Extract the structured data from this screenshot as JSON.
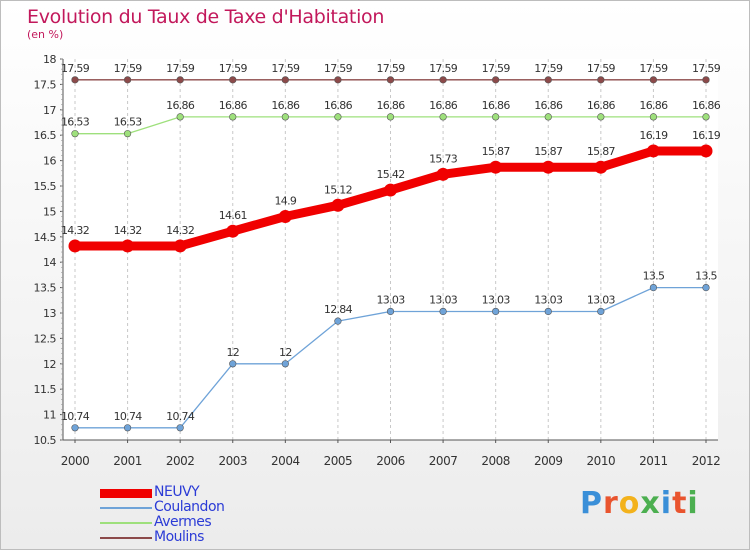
{
  "title": "Evolution du Taux de Taxe d'Habitation",
  "unit": "(en %)",
  "logo": {
    "text": "Proxiti",
    "colors": [
      "#3a8fd8",
      "#e9542e",
      "#f3b21c",
      "#4caf50",
      "#3a8fd8",
      "#e9542e",
      "#4caf50"
    ]
  },
  "chart_data": {
    "type": "line",
    "title": "Evolution du Taux de Taxe d'Habitation",
    "ylabel": "(en %)",
    "xlabel": "",
    "x": [
      "2000",
      "2001",
      "2002",
      "2003",
      "2004",
      "2005",
      "2006",
      "2007",
      "2008",
      "2009",
      "2010",
      "2011",
      "2012"
    ],
    "ylim": [
      10.5,
      18
    ],
    "yticks": [
      10.5,
      11,
      11.5,
      12,
      12.5,
      13,
      13.5,
      14,
      14.5,
      15,
      15.5,
      16,
      16.5,
      17,
      17.5,
      18
    ],
    "ytick_labels": [
      "10.5",
      "11",
      "11.5",
      "12",
      "12.5",
      "13",
      "13.5",
      "14",
      "14.5",
      "15",
      "15.5",
      "16",
      "16.5",
      "17",
      "17.5",
      "18"
    ],
    "grid": "vertical dashed",
    "legend_position": "bottom-left",
    "series": [
      {
        "name": "NEUVY",
        "color": "#f00000",
        "values": [
          14.32,
          14.32,
          14.32,
          14.61,
          14.9,
          15.12,
          15.42,
          15.73,
          15.87,
          15.87,
          15.87,
          16.19,
          16.19
        ],
        "labels": [
          "14.32",
          "14.32",
          "14.32",
          "14.61",
          "14.9",
          "15.12",
          "15.42",
          "15.73",
          "15.87",
          "15.87",
          "15.87",
          "16.19",
          "16.19"
        ]
      },
      {
        "name": "Coulandon",
        "color": "#6fa3d8",
        "values": [
          10.74,
          10.74,
          10.74,
          12,
          12,
          12.84,
          13.03,
          13.03,
          13.03,
          13.03,
          13.03,
          13.5,
          13.5
        ],
        "labels": [
          "10.74",
          "10.74",
          "10.74",
          "12",
          "12",
          "12.84",
          "13.03",
          "13.03",
          "13.03",
          "13.03",
          "13.03",
          "13.5",
          "13.5"
        ]
      },
      {
        "name": "Avermes",
        "color": "#9ee07c",
        "values": [
          16.53,
          16.53,
          16.86,
          16.86,
          16.86,
          16.86,
          16.86,
          16.86,
          16.86,
          16.86,
          16.86,
          16.86,
          16.86
        ],
        "labels": [
          "16.53",
          "16.53",
          "16.86",
          "16.86",
          "16.86",
          "16.86",
          "16.86",
          "16.86",
          "16.86",
          "16.86",
          "16.86",
          "16.86",
          "16.86"
        ]
      },
      {
        "name": "Moulins",
        "color": "#8c4a4a",
        "values": [
          17.59,
          17.59,
          17.59,
          17.59,
          17.59,
          17.59,
          17.59,
          17.59,
          17.59,
          17.59,
          17.59,
          17.59,
          17.59
        ],
        "labels": [
          "17.59",
          "17.59",
          "17.59",
          "17.59",
          "17.59",
          "17.59",
          "17.59",
          "17.59",
          "17.59",
          "17.59",
          "17.59",
          "17.59",
          "17.59"
        ]
      }
    ]
  }
}
